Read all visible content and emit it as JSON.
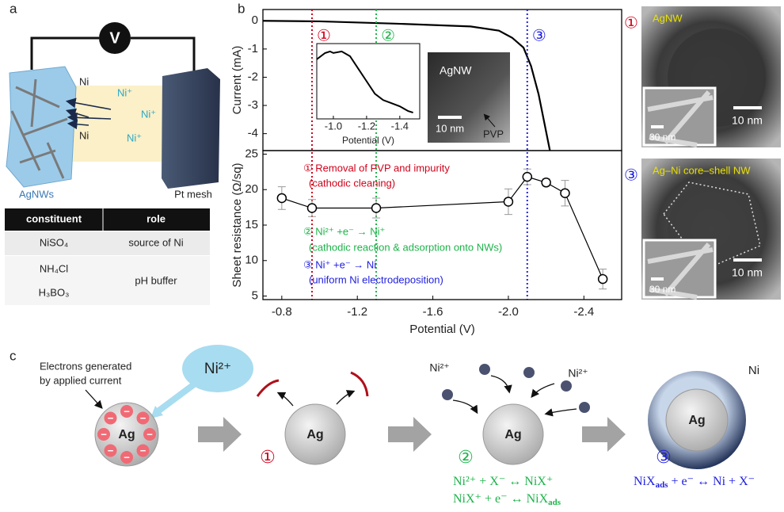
{
  "figure_labels": {
    "a": "a",
    "b": "b",
    "c": "c"
  },
  "panel_a": {
    "voltmeter": "V",
    "ni_atoms": [
      "Ni",
      "Ni"
    ],
    "ni_ions": [
      "Ni⁺",
      "Ni⁺",
      "Ni⁺"
    ],
    "electrodes": [
      "AgNWs",
      "Pt mesh"
    ]
  },
  "table": {
    "header": [
      "constituent",
      "role"
    ],
    "rows": [
      {
        "constituents": [
          "NiSO₄"
        ],
        "role": "source of Ni"
      },
      {
        "constituents": [
          "NH₄Cl",
          "H₃BO₃"
        ],
        "role": "pH buffer"
      }
    ]
  },
  "chart_data": [
    {
      "type": "line",
      "ylabel": "Current (mA)",
      "x": [
        -0.7,
        -1.0,
        -1.4,
        -1.8,
        -1.95,
        -2.02,
        -2.08,
        -2.12,
        -2.16,
        -2.19,
        -2.22
      ],
      "values": [
        0,
        -0.02,
        -0.1,
        -0.2,
        -0.35,
        -0.6,
        -0.95,
        -1.6,
        -2.6,
        -3.6,
        -4.6
      ],
      "color": "#000000",
      "xlim": [
        -0.7,
        -2.6
      ],
      "ylim": [
        -4.6,
        0.4
      ],
      "yticks": [
        0,
        -1,
        -2,
        -3,
        -4
      ],
      "vlines": [
        {
          "x": -0.96,
          "color": "#d0021b",
          "label": "①"
        },
        {
          "x": -1.3,
          "color": "#1db34a",
          "label": "②"
        },
        {
          "x": -2.1,
          "color": "#2020e0",
          "label": "③"
        }
      ],
      "inset": {
        "x": [
          -0.9,
          -0.95,
          -0.98,
          -1.0,
          -1.05,
          -1.1,
          -1.15,
          -1.2,
          -1.25,
          -1.3,
          -1.35,
          -1.4,
          -1.45,
          -1.48
        ],
        "values": [
          -1.1,
          -0.9,
          -0.85,
          -0.9,
          -0.85,
          -1.0,
          -1.4,
          -1.8,
          -2.2,
          -2.4,
          -2.5,
          -2.6,
          -2.75,
          -2.8
        ],
        "xlim": [
          -0.9,
          -1.52
        ],
        "ylim": [
          -3.0,
          -0.6
        ],
        "xticks": [
          {
            "value": -1,
            "label": "-1.0"
          },
          -1.2,
          -1.4
        ],
        "xlabel": "Potential (V)"
      },
      "image_labels": {
        "title": "AgNW",
        "scale": "10 nm",
        "pointer": "PVP"
      }
    },
    {
      "type": "scatter",
      "xlabel": "Potential (V)",
      "ylabel": "Sheet resistance (Ω/sq)",
      "x": [
        -0.8,
        -0.96,
        -1.3,
        -2.0,
        -2.1,
        -2.2,
        -2.3,
        -2.5
      ],
      "values": [
        18.8,
        17.4,
        17.4,
        18.3,
        21.8,
        21.0,
        19.5,
        7.4
      ],
      "errors": [
        1.6,
        1.2,
        1.4,
        1.8,
        1.1,
        0.5,
        1.8,
        1.4
      ],
      "color": "#000000",
      "error_color": "#999999",
      "xlim": [
        -0.7,
        -2.6
      ],
      "ylim": [
        4.5,
        25.5
      ],
      "xticks": [
        -0.8,
        -1.2,
        -1.6,
        {
          "value": -2,
          "label": "-2.0"
        },
        -2.4
      ],
      "yticks": [
        5,
        10,
        15,
        20,
        25
      ],
      "annotations": [
        {
          "color": "#d0021b",
          "lines": [
            "① Removal of PVP and impurity",
            "(cathodic cleaning)"
          ]
        },
        {
          "color": "#1db34a",
          "lines": [
            "② Ni²⁺ +e⁻ → Ni⁺",
            "(cathodic reaction & adsorption onto NWs)"
          ]
        },
        {
          "color": "#2020e0",
          "lines": [
            "③ Ni⁺ +e⁻ → Ni",
            "(uniform Ni electrodeposition)"
          ]
        }
      ]
    }
  ],
  "tem_images": [
    {
      "label": "①",
      "label_color": "#d0021b",
      "title": "AgNW",
      "scale": "10 nm",
      "inset_scale": "30 nm"
    },
    {
      "label": "③",
      "label_color": "#2020e0",
      "title": "Ag–Ni core–shell NW",
      "scale": "10 nm",
      "inset_scale": "30 nm"
    }
  ],
  "panel_c": {
    "electrons_note": [
      "Electrons generated",
      "by applied current"
    ],
    "ion_bubble": "Ni²⁺",
    "core": "Ag",
    "electron_sign": "−",
    "shell": "Ni",
    "steps": [
      {
        "label": "①",
        "color": "#d0021b"
      },
      {
        "label": "②",
        "color": "#1db34a",
        "ions": [
          "Ni²⁺",
          "Ni²⁺"
        ],
        "equations": [
          [
            {
              "text": "Ni²⁺ + X⁻ ↔ NiX⁺"
            }
          ],
          [
            {
              "text": "NiX⁺ + e⁻ ↔ NiX"
            },
            {
              "text": "ads",
              "subscript": true
            }
          ]
        ]
      },
      {
        "label": "③",
        "color": "#2020e0",
        "equations": [
          [
            {
              "text": "NiX"
            },
            {
              "text": "ads",
              "subscript": true
            },
            {
              "text": " + e⁻ ↔ Ni + X⁻"
            }
          ]
        ]
      }
    ]
  }
}
